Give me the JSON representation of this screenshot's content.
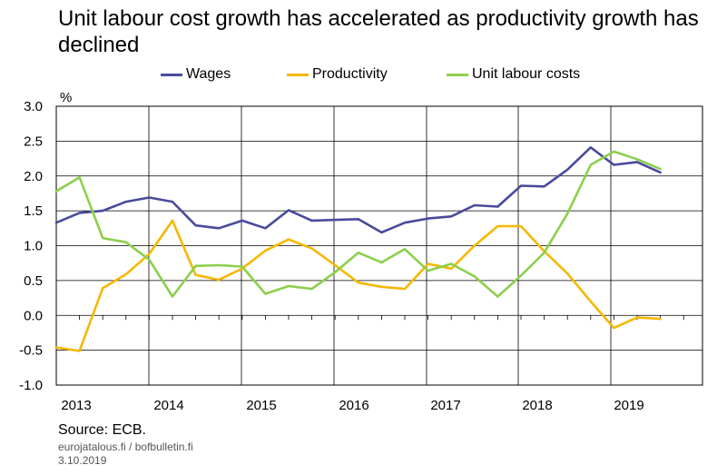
{
  "title": "Unit labour cost growth has accelerated as productivity growth has declined",
  "source": "Source: ECB.",
  "credits": "eurojatalous.fi  / bofbulletin.fi",
  "date": "3.10.2019",
  "chart_data": {
    "type": "line",
    "title": "Unit labour cost growth has accelerated as productivity growth has declined",
    "ylabel": "%",
    "xlabel": "",
    "ylim": [
      -1.0,
      3.0
    ],
    "yticks": [
      -1.0,
      -0.5,
      0.0,
      0.5,
      1.0,
      1.5,
      2.0,
      2.5,
      3.0
    ],
    "ytick_labels": [
      "-1.0",
      "-0.5",
      "0.0",
      "0.5",
      "1.0",
      "1.5",
      "2.0",
      "2.5",
      "3.0"
    ],
    "year_labels": [
      "2013",
      "2014",
      "2015",
      "2016",
      "2017",
      "2018",
      "2019"
    ],
    "grid": true,
    "legend_position": "top",
    "x": [
      "2012Q4",
      "2013Q1",
      "2013Q2",
      "2013Q3",
      "2013Q4",
      "2014Q1",
      "2014Q2",
      "2014Q3",
      "2014Q4",
      "2015Q1",
      "2015Q2",
      "2015Q3",
      "2015Q4",
      "2016Q1",
      "2016Q2",
      "2016Q3",
      "2016Q4",
      "2017Q1",
      "2017Q2",
      "2017Q3",
      "2017Q4",
      "2018Q1",
      "2018Q2",
      "2018Q3",
      "2018Q4",
      "2019Q1",
      "2019Q2"
    ],
    "series": [
      {
        "name": "Wages",
        "color": "#4a4a9c",
        "values": [
          1.33,
          1.47,
          1.5,
          1.63,
          1.69,
          1.63,
          1.29,
          1.25,
          1.36,
          1.25,
          1.51,
          1.36,
          1.37,
          1.38,
          1.19,
          1.33,
          1.39,
          1.42,
          1.58,
          1.56,
          1.86,
          1.85,
          2.09,
          2.41,
          2.16,
          2.2,
          2.05
        ]
      },
      {
        "name": "Productivity",
        "color": "#f5b800",
        "values": [
          -0.46,
          -0.51,
          0.39,
          0.59,
          0.88,
          1.36,
          0.58,
          0.51,
          0.67,
          0.93,
          1.09,
          0.96,
          0.72,
          0.47,
          0.41,
          0.38,
          0.74,
          0.67,
          1.0,
          1.28,
          1.28,
          0.92,
          0.6,
          0.2,
          -0.18,
          -0.03,
          -0.05
        ]
      },
      {
        "name": "Unit labour costs",
        "color": "#8ccf4d",
        "values": [
          1.78,
          1.98,
          1.11,
          1.05,
          0.8,
          0.27,
          0.71,
          0.72,
          0.7,
          0.31,
          0.42,
          0.38,
          0.62,
          0.9,
          0.76,
          0.95,
          0.64,
          0.74,
          0.56,
          0.27,
          0.57,
          0.9,
          1.46,
          2.16,
          2.35,
          2.24,
          2.1
        ]
      }
    ]
  }
}
